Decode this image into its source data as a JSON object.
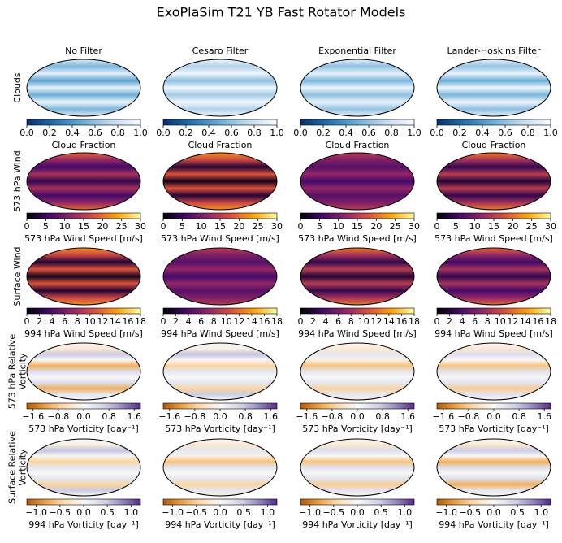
{
  "title": "ExoPlaSim T21 YB Fast Rotator Models",
  "columns": [
    "No Filter",
    "Cesaro Filter",
    "Exponential Filter",
    "Lander-Hoskins Filter"
  ],
  "rows": [
    {
      "label": [
        "Clouds"
      ],
      "colormap": "blues",
      "colorbar": {
        "label": "Cloud Fraction",
        "lim": [
          0,
          1
        ],
        "ticks": [
          {
            "value": 0,
            "label": "0.0"
          },
          {
            "value": 0.2,
            "label": "0.2"
          },
          {
            "value": 0.4,
            "label": "0.4"
          },
          {
            "value": 0.6,
            "label": "0.6"
          },
          {
            "value": 0.8,
            "label": "0.8"
          },
          {
            "value": 1,
            "label": "1.0"
          }
        ]
      }
    },
    {
      "label": [
        "573 hPa Wind"
      ],
      "colormap": "inferno",
      "colorbar": {
        "label": "573 hPa Wind Speed [m/s]",
        "lim": [
          0,
          30
        ],
        "ticks": [
          0,
          5,
          10,
          15,
          20,
          25,
          30
        ]
      }
    },
    {
      "label": [
        "Surface Wind"
      ],
      "colormap": "inferno",
      "colorbar": {
        "label": "994 hPa Wind Speed [m/s]",
        "lim": [
          0,
          18
        ],
        "ticks": [
          0,
          2,
          4,
          6,
          8,
          10,
          12,
          14,
          16,
          18
        ]
      }
    },
    {
      "label": [
        "573 hPa Relative",
        "Vorticity"
      ],
      "colormap": "puor",
      "colorbar": {
        "label": "573 hPa Vorticity [day⁻¹]",
        "lim": [
          -1.8,
          1.8
        ],
        "ticks": [
          {
            "value": -1.6,
            "label": "−1.6"
          },
          {
            "value": -0.8,
            "label": "−0.8"
          },
          {
            "value": 0,
            "label": "0.0"
          },
          0.8,
          1.6
        ]
      }
    },
    {
      "label": [
        "Surface Relative",
        "Vorticity"
      ],
      "colormap": "puor",
      "colorbar": {
        "label": "994 hPa Vorticity [day⁻¹]",
        "lim": [
          -1.2,
          1.2
        ],
        "ticks": [
          {
            "value": -1,
            "label": "−1.0"
          },
          {
            "value": -0.5,
            "label": "−0.5"
          },
          {
            "value": 0,
            "label": "0.0"
          },
          0.5,
          {
            "value": 1,
            "label": "1.0"
          }
        ]
      }
    }
  ]
}
